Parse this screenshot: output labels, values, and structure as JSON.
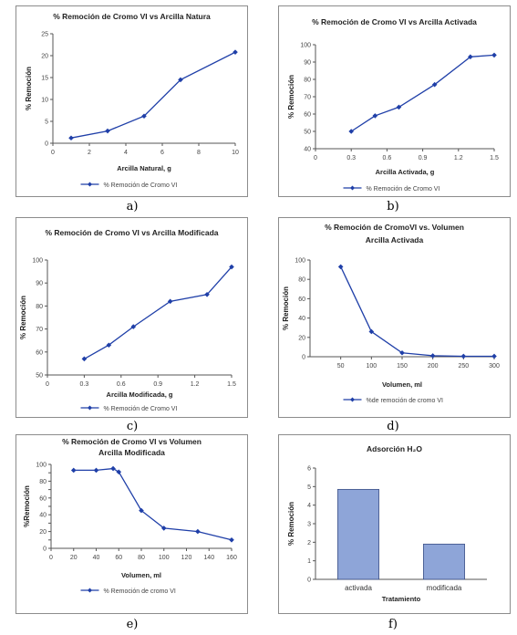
{
  "style": {
    "line_color": "#1f3fa8",
    "bar_fill": "#8ea5d8",
    "bar_stroke": "#3b4f86",
    "axis_color": "#555555"
  },
  "chart_data": [
    {
      "id": "a",
      "caption": "a)",
      "type": "line",
      "title": "% Remoción de Cromo VI vs Arcilla Natura",
      "xlabel": "Arcilla Natural, g",
      "ylabel": "% Remoción",
      "xlim": [
        0,
        10
      ],
      "ylim": [
        0,
        25
      ],
      "xticks": [
        0,
        2,
        4,
        6,
        8,
        10
      ],
      "yticks": [
        0,
        5,
        10,
        15,
        20,
        25
      ],
      "series": [
        {
          "name": "% Remoción de Cromo VI",
          "x": [
            1,
            3,
            5,
            7,
            10
          ],
          "y": [
            1.2,
            2.8,
            6.2,
            14.5,
            20.8
          ]
        }
      ],
      "legend": "bottom"
    },
    {
      "id": "b",
      "caption": "b)",
      "type": "line",
      "title": "% Remoción de Cromo VI vs Arcilla Activada",
      "xlabel": "Arcilla Activada, g",
      "ylabel": "% Remoción",
      "xlim": [
        0,
        1.5
      ],
      "ylim": [
        40,
        100
      ],
      "xticks": [
        0,
        0.3,
        0.6,
        0.9,
        1.2,
        1.5
      ],
      "xtick_labels": [
        "0",
        "0.3",
        "0.6",
        "0.9",
        "1.2",
        "1.5"
      ],
      "yticks": [
        40,
        50,
        60,
        70,
        80,
        90,
        100
      ],
      "series": [
        {
          "name": "% Remoción de Cromo VI",
          "x": [
            0.3,
            0.5,
            0.7,
            1.0,
            1.3,
            1.5
          ],
          "y": [
            50,
            59,
            64,
            77,
            93,
            94
          ]
        }
      ],
      "legend": "bottom"
    },
    {
      "id": "c",
      "caption": "c)",
      "type": "line",
      "title": "% Remoción de Cromo VI vs Arcilla Modificada",
      "xlabel": "Arcilla Modificada, g",
      "ylabel": "% Remoción",
      "xlim": [
        0,
        1.5
      ],
      "ylim": [
        50,
        100
      ],
      "xticks": [
        0,
        0.3,
        0.6,
        0.9,
        1.2,
        1.5
      ],
      "xtick_labels": [
        "0",
        "0.3",
        "0.6",
        "0.9",
        "1.2",
        "1.5"
      ],
      "yticks": [
        50,
        60,
        70,
        80,
        90,
        100
      ],
      "series": [
        {
          "name": "% Remoción de Cromo VI",
          "x": [
            0.3,
            0.5,
            0.7,
            1.0,
            1.3,
            1.5
          ],
          "y": [
            57,
            63,
            71,
            82,
            85,
            97
          ]
        }
      ],
      "legend": "bottom"
    },
    {
      "id": "d",
      "caption": "d)",
      "type": "line",
      "title": "% Remoción de CromoVI vs. Volumen",
      "subtitle": "Arcilla Activada",
      "xlabel": "Volumen, ml",
      "ylabel": "% Remoción",
      "xlim": [
        0,
        300
      ],
      "ylim": [
        0,
        100
      ],
      "xticks": [
        50,
        100,
        150,
        200,
        250,
        300
      ],
      "yticks": [
        0,
        20,
        40,
        60,
        80,
        100
      ],
      "x_axis_min_label": false,
      "series": [
        {
          "name": "%de remoción de cromo VI",
          "x": [
            50,
            100,
            150,
            200,
            250,
            300
          ],
          "y": [
            93,
            26,
            4,
            1,
            0.5,
            0.5
          ]
        }
      ],
      "legend": "bottom"
    },
    {
      "id": "e",
      "caption": "e)",
      "type": "line",
      "title": "% Remoción de Cromo VI vs Volumen",
      "subtitle": "Arcilla Modificada",
      "xlabel": "Volumen, ml",
      "ylabel": "%Remoción",
      "xlim": [
        0,
        160
      ],
      "ylim": [
        0,
        100
      ],
      "xticks": [
        0,
        20,
        40,
        60,
        80,
        100,
        120,
        140,
        160
      ],
      "yticks": [
        0,
        10,
        20,
        30,
        40,
        50,
        60,
        70,
        80,
        90,
        100
      ],
      "ytick_labels": [
        "0",
        "",
        "20",
        "",
        "40",
        "",
        "60",
        "",
        "80",
        "",
        "100"
      ],
      "series": [
        {
          "name": "% Remoción de cromo VI",
          "x": [
            20,
            40,
            55,
            60,
            80,
            100,
            130,
            160
          ],
          "y": [
            93,
            93,
            95,
            91,
            45,
            24,
            20,
            10
          ]
        }
      ],
      "legend": "bottom"
    },
    {
      "id": "f",
      "caption": "f)",
      "type": "bar",
      "title": "Adsorción H₂O",
      "xlabel": "Tratamiento",
      "ylabel": "% Remoción",
      "ylim": [
        0,
        6
      ],
      "yticks": [
        0,
        1,
        2,
        3,
        4,
        5,
        6
      ],
      "categories": [
        "activada",
        "modificada"
      ],
      "values": [
        4.85,
        1.9
      ]
    }
  ]
}
